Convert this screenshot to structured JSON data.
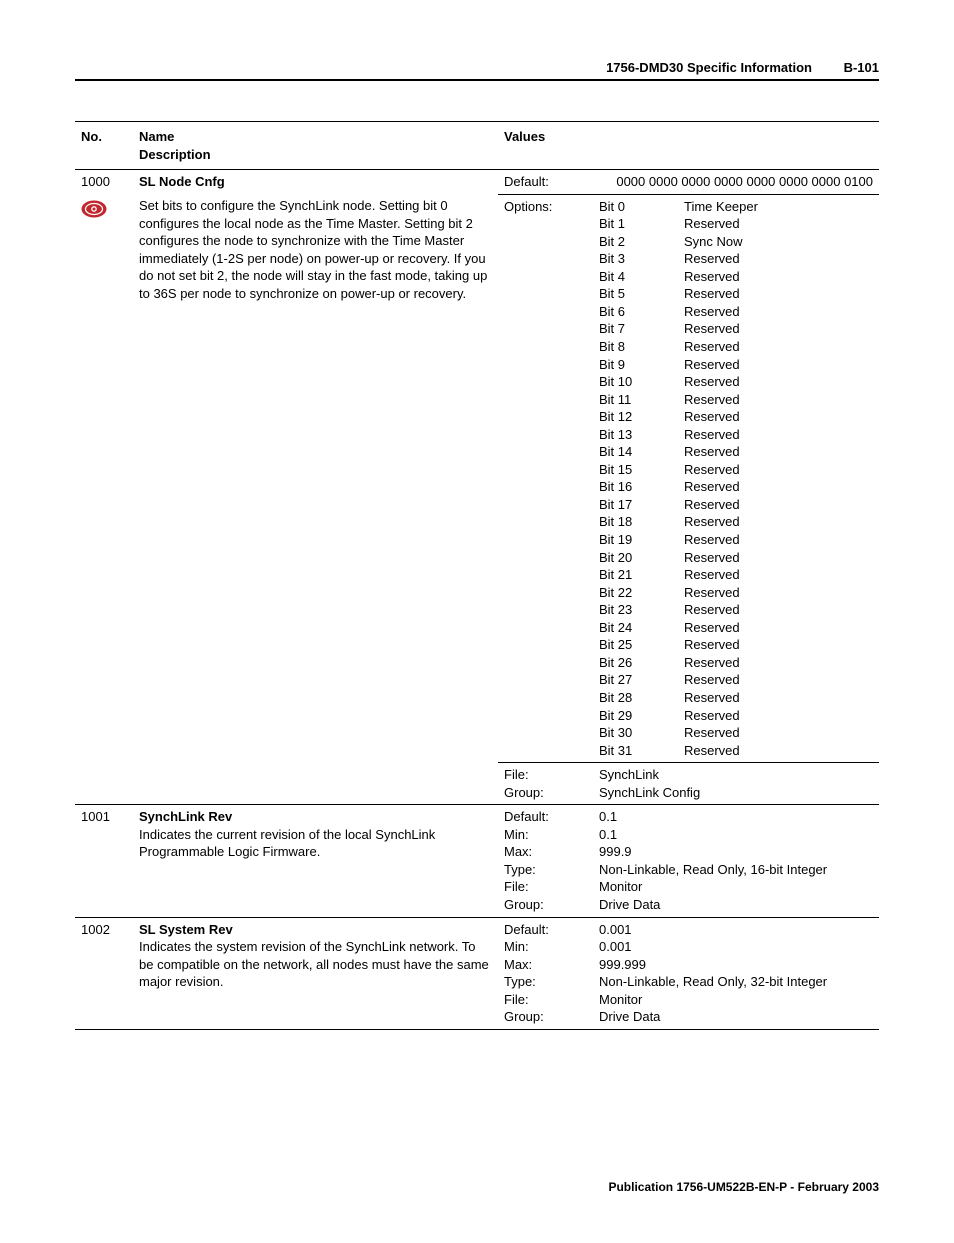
{
  "header": {
    "title": "1756-DMD30 Specific Information",
    "page": "B-101"
  },
  "footer": {
    "text": "Publication 1756-UM522B-EN-P - February 2003"
  },
  "table": {
    "headers": {
      "no": "No.",
      "name": "Name",
      "desc": "Description",
      "values": "Values"
    },
    "r1000": {
      "no": "1000",
      "name": "SL Node Cnfg",
      "desc": "Set bits to configure the SynchLink node.  Setting bit 0 configures the local node as the Time Master.  Setting bit 2 configures the node to synchronize with the Time Master immediately (1-2S per node) on power-up or recovery. If you do not set bit 2, the node will stay in the fast mode, taking up to 36S per node to synchronize on power-up or recovery.",
      "default_label": "Default:",
      "default_val": "0000 0000 0000 0000 0000 0000 0000 0100",
      "options_label": "Options:",
      "bits": [
        "Bit 0",
        "Bit 1",
        "Bit 2",
        "Bit 3",
        "Bit 4",
        "Bit 5",
        "Bit 6",
        "Bit 7",
        "Bit 8",
        "Bit 9",
        "Bit 10",
        "Bit 11",
        "Bit 12",
        "Bit 13",
        "Bit 14",
        "Bit 15",
        "Bit 16",
        "Bit 17",
        "Bit 18",
        "Bit 19",
        "Bit 20",
        "Bit 21",
        "Bit 22",
        "Bit 23",
        "Bit 24",
        "Bit 25",
        "Bit 26",
        "Bit 27",
        "Bit 28",
        "Bit 29",
        "Bit 30",
        "Bit 31"
      ],
      "bitvals": [
        "Time Keeper",
        "Reserved",
        "Sync Now",
        "Reserved",
        "Reserved",
        "Reserved",
        "Reserved",
        "Reserved",
        "Reserved",
        "Reserved",
        "Reserved",
        "Reserved",
        "Reserved",
        "Reserved",
        "Reserved",
        "Reserved",
        "Reserved",
        "Reserved",
        "Reserved",
        "Reserved",
        "Reserved",
        "Reserved",
        "Reserved",
        "Reserved",
        "Reserved",
        "Reserved",
        "Reserved",
        "Reserved",
        "Reserved",
        "Reserved",
        "Reserved",
        "Reserved"
      ],
      "file_label": "File:",
      "file_val": "SynchLink",
      "group_label": "Group:",
      "group_val": "SynchLink Config"
    },
    "r1001": {
      "no": "1001",
      "name": "SynchLink Rev",
      "desc": "Indicates the current revision of the local SynchLink Programmable Logic Firmware.",
      "labels": [
        "Default:",
        "Min:",
        "Max:",
        "Type:",
        "File:",
        "Group:"
      ],
      "vals": [
        "0.1",
        "0.1",
        "999.9",
        "Non-Linkable, Read Only, 16-bit Integer",
        "Monitor",
        "Drive Data"
      ]
    },
    "r1002": {
      "no": "1002",
      "name": "SL System Rev",
      "desc": "Indicates the system revision of the SynchLink network. To be compatible on the network, all nodes must have the same major revision.",
      "labels": [
        "Default:",
        "Min:",
        "Max:",
        "Type:",
        "File:",
        "Group:"
      ],
      "vals": [
        "0.001",
        "0.001",
        "999.999",
        "Non-Linkable, Read Only, 32-bit Integer",
        "Monitor",
        "Drive Data"
      ]
    }
  },
  "colors": {
    "icon_bg": "#c1272d",
    "icon_stroke": "#ffffff"
  }
}
